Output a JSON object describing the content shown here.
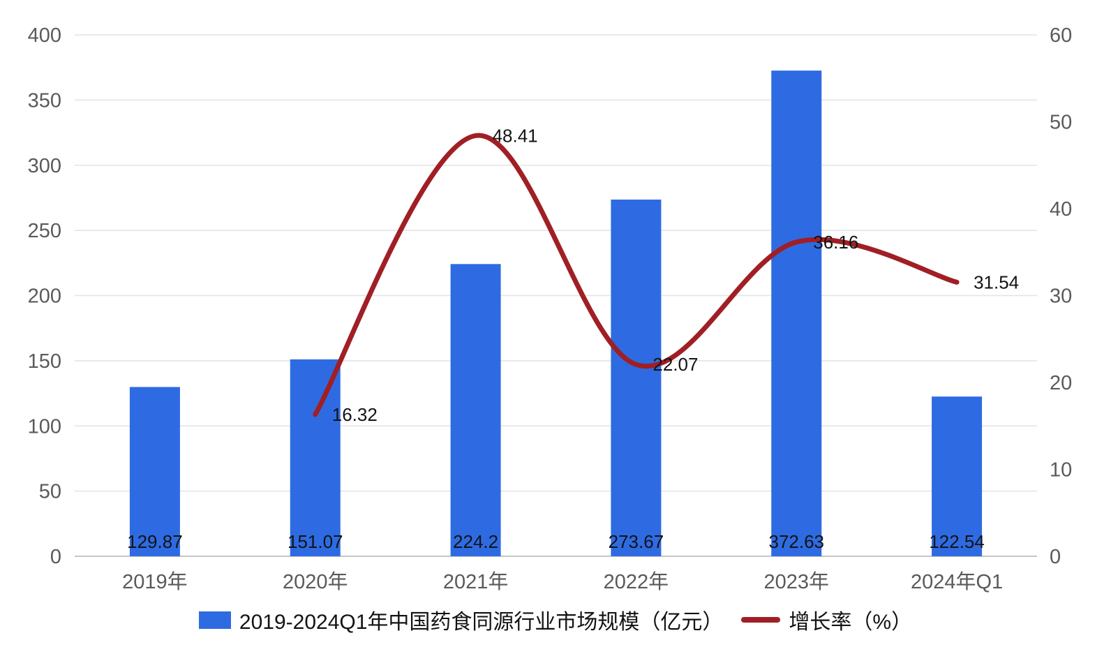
{
  "chart_data": {
    "type": "bar+line",
    "title": "",
    "categories": [
      "2019年",
      "2020年",
      "2021年",
      "2022年",
      "2023年",
      "2024年Q1"
    ],
    "series": [
      {
        "name": "2019-2024Q1年中国药食同源行业市场规模（亿元）",
        "type": "bar",
        "axis": "left",
        "color": "#2e6be2",
        "values": [
          129.87,
          151.07,
          224.2,
          273.67,
          372.63,
          122.54
        ]
      },
      {
        "name": "增长率（%）",
        "type": "line",
        "axis": "right",
        "color": "#a01f25",
        "values": [
          null,
          16.32,
          48.41,
          22.07,
          36.16,
          31.54
        ]
      }
    ],
    "left_axis": {
      "min": 0,
      "max": 400,
      "step": 50,
      "ticks": [
        0,
        50,
        100,
        150,
        200,
        250,
        300,
        350,
        400
      ]
    },
    "right_axis": {
      "min": 0,
      "max": 60,
      "step": 10,
      "ticks": [
        0,
        10,
        20,
        30,
        40,
        50,
        60
      ]
    },
    "grid": "horizontal",
    "legend_position": "bottom",
    "colors": {
      "grid": "#e3e3e3",
      "axis_line": "#c6c6c6",
      "tick_label": "#5a5a5a",
      "data_label": "#131313",
      "background": "#ffffff"
    }
  }
}
